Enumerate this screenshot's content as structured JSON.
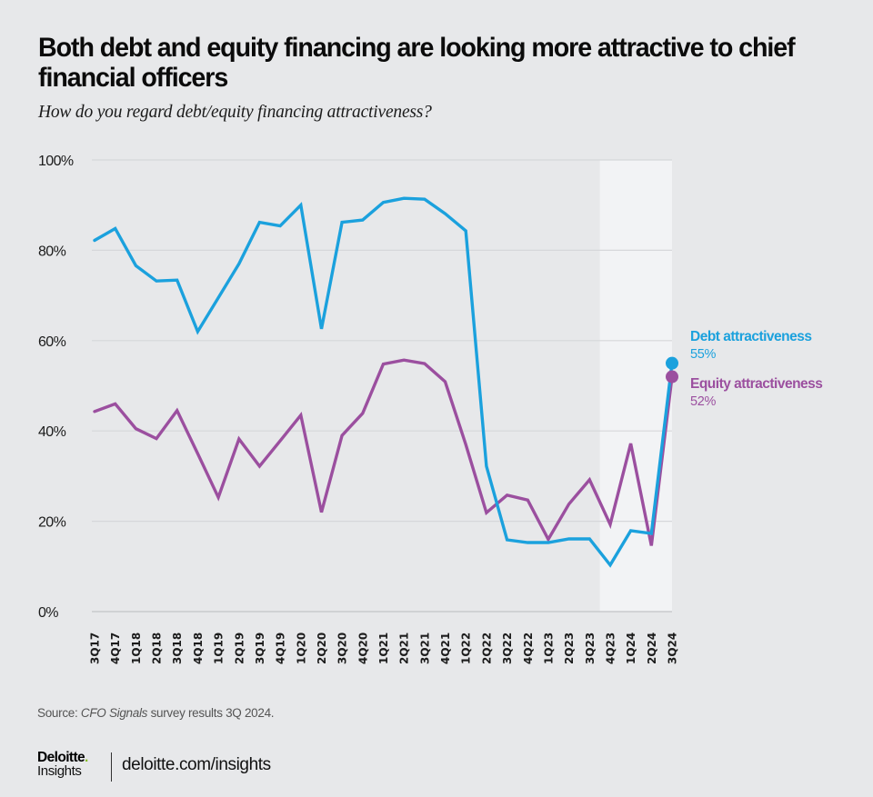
{
  "title": "Both debt and equity financing are looking more attractive to chief financial officers",
  "subtitle": "How do you regard debt/equity financing attractiveness?",
  "source": {
    "prefix": "Source: ",
    "publication": "CFO Signals",
    "suffix": " survey results 3Q 2024."
  },
  "branding": {
    "logo_name": "Deloitte",
    "logo_dot": ".",
    "logo_sub": "Insights",
    "website": "deloitte.com/insights",
    "accent_color": "#86bc25"
  },
  "chart_data": {
    "type": "line",
    "title": "Both debt and equity financing are looking more attractive to chief financial officers",
    "subtitle": "How do you regard debt/equity financing attractiveness?",
    "xlabel": "",
    "ylabel": "",
    "ylim": [
      0,
      100
    ],
    "yticks": [
      0,
      20,
      40,
      60,
      80,
      100
    ],
    "ytick_labels": [
      "0%",
      "20%",
      "40%",
      "60%",
      "80%",
      "100%"
    ],
    "grid": true,
    "highlight_range": [
      "4Q23",
      "3Q24"
    ],
    "highlight_color": "#f2f3f5",
    "legend_placement": "right (inline at line ends)",
    "categories": [
      "3Q17",
      "4Q17",
      "1Q18",
      "2Q18",
      "3Q18",
      "4Q18",
      "1Q19",
      "2Q19",
      "3Q19",
      "4Q19",
      "1Q20",
      "2Q20",
      "3Q20",
      "4Q20",
      "1Q21",
      "2Q21",
      "3Q21",
      "4Q21",
      "1Q22",
      "2Q22",
      "3Q22",
      "4Q22",
      "1Q23",
      "2Q23",
      "3Q23",
      "4Q23",
      "1Q24",
      "2Q24",
      "3Q24"
    ],
    "series": [
      {
        "name": "Debt attractiveness",
        "end_label": "55%",
        "color": "#1ba1dd",
        "values": [
          82.2,
          84.8,
          76.6,
          73.2,
          73.4,
          62.0,
          69.5,
          77.0,
          86.2,
          85.4,
          90.0,
          62.6,
          86.2,
          86.7,
          90.6,
          91.5,
          91.3,
          88.1,
          84.3,
          32.2,
          15.9,
          15.3,
          15.3,
          16.1,
          16.1,
          10.3,
          17.9,
          17.3,
          55.0
        ]
      },
      {
        "name": "Equity attractiveness",
        "end_label": "52%",
        "color": "#9b4f9f",
        "values": [
          44.3,
          46.0,
          40.5,
          38.3,
          44.5,
          35.0,
          25.3,
          38.2,
          32.2,
          37.8,
          43.5,
          22.0,
          39.0,
          43.9,
          54.8,
          55.7,
          54.9,
          50.9,
          37.0,
          21.9,
          25.8,
          24.7,
          16.0,
          23.8,
          29.2,
          19.3,
          37.2,
          14.6,
          52.0
        ]
      }
    ]
  }
}
